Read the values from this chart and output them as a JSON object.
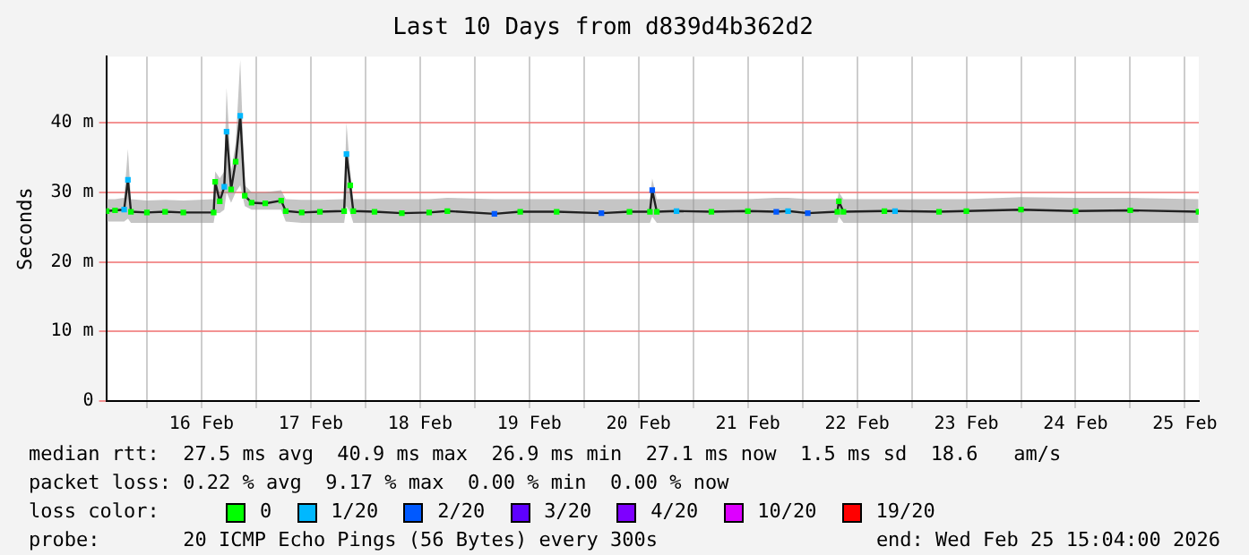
{
  "chart_data": {
    "type": "line",
    "title": "Last 10 Days from d839d4b362d2",
    "ylabel": "Seconds",
    "xlim": [
      "2026-02-15T15:04",
      "2026-02-25T15:04"
    ],
    "xticks": [
      {
        "value": "2026-02-16T00:00",
        "label": null
      },
      {
        "value": "2026-02-16T12:00",
        "label": "16 Feb"
      },
      {
        "value": "2026-02-17T00:00",
        "label": null
      },
      {
        "value": "2026-02-17T12:00",
        "label": "17 Feb"
      },
      {
        "value": "2026-02-18T00:00",
        "label": null
      },
      {
        "value": "2026-02-18T12:00",
        "label": "18 Feb"
      },
      {
        "value": "2026-02-19T00:00",
        "label": null
      },
      {
        "value": "2026-02-19T12:00",
        "label": "19 Feb"
      },
      {
        "value": "2026-02-20T00:00",
        "label": null
      },
      {
        "value": "2026-02-20T12:00",
        "label": "20 Feb"
      },
      {
        "value": "2026-02-21T00:00",
        "label": null
      },
      {
        "value": "2026-02-21T12:00",
        "label": "21 Feb"
      },
      {
        "value": "2026-02-22T00:00",
        "label": null
      },
      {
        "value": "2026-02-22T12:00",
        "label": "22 Feb"
      },
      {
        "value": "2026-02-23T00:00",
        "label": null
      },
      {
        "value": "2026-02-23T12:00",
        "label": "23 Feb"
      },
      {
        "value": "2026-02-24T00:00",
        "label": null
      },
      {
        "value": "2026-02-24T12:00",
        "label": "24 Feb"
      },
      {
        "value": "2026-02-25T00:00",
        "label": null
      },
      {
        "value": "2026-02-25T12:00",
        "label": "25 Feb"
      }
    ],
    "ylim": [
      0,
      49.5
    ],
    "yticks": [
      0,
      {
        "value": 10,
        "label": "10 m"
      },
      {
        "value": 20,
        "label": "20 m"
      },
      {
        "value": 30,
        "label": "30 m"
      },
      {
        "value": 40,
        "label": "40 m"
      }
    ],
    "grid": true,
    "legend": "bottom",
    "legend_title": "loss color:",
    "annotations": [
      "median rtt:  27.5 ms avg  40.9 ms max  26.9 ms min  27.1 ms now  1.5 ms sd  18.6   am/s",
      "packet loss: 0.22 % avg  9.17 % max  0.00 % min  0.00 % now",
      "probe:       20 ICMP Echo Pings (56 Bytes) every 300s",
      "end: Wed Feb 25 15:04:00 2026"
    ],
    "series": [
      {
        "color": "#202020",
        "x": [
          "2026-02-15T15:10",
          "2026-02-15T17:00",
          "2026-02-15T19:00",
          "2026-02-15T19:50",
          "2026-02-15T20:30",
          "2026-02-16T00:00",
          "2026-02-16T04:00",
          "2026-02-16T08:00",
          "2026-02-16T14:40",
          "2026-02-16T15:00",
          "2026-02-16T16:00",
          "2026-02-16T17:00",
          "2026-02-16T17:30",
          "2026-02-16T18:30",
          "2026-02-16T19:30",
          "2026-02-16T20:30",
          "2026-02-16T21:30",
          "2026-02-16T23:00",
          "2026-02-17T02:00",
          "2026-02-17T05:30",
          "2026-02-17T06:30",
          "2026-02-17T10:00",
          "2026-02-17T14:00",
          "2026-02-17T19:20",
          "2026-02-17T19:50",
          "2026-02-17T20:40",
          "2026-02-17T21:20",
          "2026-02-18T02:00",
          "2026-02-18T08:00",
          "2026-02-18T14:00",
          "2026-02-18T18:00",
          "2026-02-19T04:20",
          "2026-02-19T10:00",
          "2026-02-19T18:00",
          "2026-02-20T03:50",
          "2026-02-20T10:00",
          "2026-02-20T14:30",
          "2026-02-20T15:00",
          "2026-02-20T16:00",
          "2026-02-20T20:20",
          "2026-02-21T04:00",
          "2026-02-21T12:00",
          "2026-02-21T18:15",
          "2026-02-21T20:50",
          "2026-02-22T01:10",
          "2026-02-22T07:40",
          "2026-02-22T08:00",
          "2026-02-22T09:00",
          "2026-02-22T18:00",
          "2026-02-22T20:20",
          "2026-02-23T06:00",
          "2026-02-23T12:00",
          "2026-02-24T00:00",
          "2026-02-24T12:00",
          "2026-02-25T00:00",
          "2026-02-25T15:00"
        ],
        "values": [
          27.3,
          27.4,
          27.5,
          31.8,
          27.2,
          27.1,
          27.2,
          27.1,
          27.1,
          31.5,
          28.7,
          30.8,
          38.7,
          30.4,
          34.4,
          41,
          29.5,
          28.5,
          28.4,
          28.8,
          27.3,
          27.1,
          27.2,
          27.3,
          35.5,
          31,
          27.3,
          27.2,
          27,
          27.1,
          27.3,
          26.9,
          27.2,
          27.2,
          27,
          27.2,
          27.2,
          30.3,
          27.2,
          27.3,
          27.2,
          27.3,
          27.2,
          27.3,
          27,
          27.2,
          28.7,
          27.2,
          27.3,
          27.3,
          27.2,
          27.3,
          27.5,
          27.3,
          27.4,
          27.2
        ],
        "lower": [
          25.8,
          25.8,
          25.8,
          26.2,
          25.6,
          25.6,
          25.6,
          25.6,
          25.6,
          27,
          27,
          27.5,
          30,
          28.5,
          30,
          31,
          28,
          27.5,
          27.5,
          27.5,
          25.8,
          25.6,
          25.6,
          25.6,
          28,
          27,
          25.6,
          25.6,
          25.6,
          25.6,
          25.6,
          25.6,
          25.6,
          25.6,
          25.6,
          25.6,
          25.6,
          26.5,
          25.6,
          25.6,
          25.6,
          25.6,
          25.6,
          25.6,
          25.6,
          25.6,
          26.5,
          25.6,
          25.6,
          25.6,
          25.6,
          25.6,
          25.6,
          25.6,
          25.6,
          25.6
        ],
        "upper": [
          29,
          29,
          29.2,
          36.2,
          29,
          28.8,
          28.9,
          28.8,
          29,
          33,
          32,
          33,
          45,
          33,
          37,
          49,
          31,
          30,
          30,
          30.3,
          29,
          28.9,
          28.9,
          29,
          40,
          33,
          29,
          29,
          29,
          29,
          29.2,
          29,
          29,
          29,
          29,
          29,
          29,
          32,
          29,
          29,
          29,
          29,
          29.2,
          29.2,
          29,
          29,
          30,
          29,
          29,
          29,
          29,
          29,
          29.3,
          29.2,
          29.2,
          29
        ]
      },
      {
        "type": "scatter",
        "name": "0",
        "color": "#00ff00",
        "marker": "square",
        "x": [
          "2026-02-15T15:10",
          "2026-02-15T17:00",
          "2026-02-15T20:30",
          "2026-02-16T00:00",
          "2026-02-16T04:00",
          "2026-02-16T08:00",
          "2026-02-16T14:40",
          "2026-02-16T15:00",
          "2026-02-16T16:00",
          "2026-02-16T18:30",
          "2026-02-16T19:30",
          "2026-02-16T21:30",
          "2026-02-16T23:00",
          "2026-02-17T02:00",
          "2026-02-17T05:30",
          "2026-02-17T06:30",
          "2026-02-17T10:00",
          "2026-02-17T14:00",
          "2026-02-17T19:20",
          "2026-02-17T20:40",
          "2026-02-17T21:20",
          "2026-02-18T02:00",
          "2026-02-18T08:00",
          "2026-02-18T14:00",
          "2026-02-18T18:00",
          "2026-02-19T10:00",
          "2026-02-19T18:00",
          "2026-02-20T10:00",
          "2026-02-20T14:30",
          "2026-02-20T16:00",
          "2026-02-21T04:00",
          "2026-02-21T12:00",
          "2026-02-22T07:40",
          "2026-02-22T08:00",
          "2026-02-22T09:00",
          "2026-02-22T18:00",
          "2026-02-23T06:00",
          "2026-02-23T12:00",
          "2026-02-24T00:00",
          "2026-02-24T12:00",
          "2026-02-25T00:00",
          "2026-02-25T15:00"
        ],
        "values": [
          27.3,
          27.4,
          27.2,
          27.1,
          27.2,
          27.1,
          27.1,
          31.5,
          28.7,
          30.4,
          34.4,
          29.5,
          28.5,
          28.4,
          28.8,
          27.3,
          27.1,
          27.2,
          27.3,
          31,
          27.3,
          27.2,
          27,
          27.1,
          27.3,
          27.2,
          27.2,
          27.2,
          27.2,
          27.2,
          27.2,
          27.3,
          27.2,
          28.7,
          27.2,
          27.3,
          27.2,
          27.3,
          27.5,
          27.3,
          27.4,
          27.2
        ]
      },
      {
        "type": "scatter",
        "name": "1/20",
        "color": "#00b8ff",
        "marker": "square",
        "x": [
          "2026-02-15T19:00",
          "2026-02-15T19:50",
          "2026-02-16T17:00",
          "2026-02-16T17:30",
          "2026-02-16T20:30",
          "2026-02-17T19:50",
          "2026-02-20T20:20",
          "2026-02-21T20:50",
          "2026-02-22T20:20"
        ],
        "values": [
          27.5,
          31.8,
          30.8,
          38.7,
          41,
          35.5,
          27.3,
          27.3,
          27.3
        ]
      },
      {
        "type": "scatter",
        "name": "2/20",
        "color": "#0059ff",
        "marker": "square",
        "x": [
          "2026-02-19T04:20",
          "2026-02-20T03:50",
          "2026-02-20T15:00",
          "2026-02-21T18:15",
          "2026-02-22T01:10"
        ],
        "values": [
          26.9,
          27,
          30.3,
          27.2,
          27
        ]
      },
      {
        "type": "scatter",
        "name": "3/20",
        "color": "#5e00ff"
      },
      {
        "type": "scatter",
        "name": "4/20",
        "color": "#7e00ff"
      },
      {
        "type": "scatter",
        "name": "10/20",
        "color": "#dd00ff"
      },
      {
        "type": "scatter",
        "name": "19/20",
        "color": "#ff0000"
      }
    ]
  }
}
